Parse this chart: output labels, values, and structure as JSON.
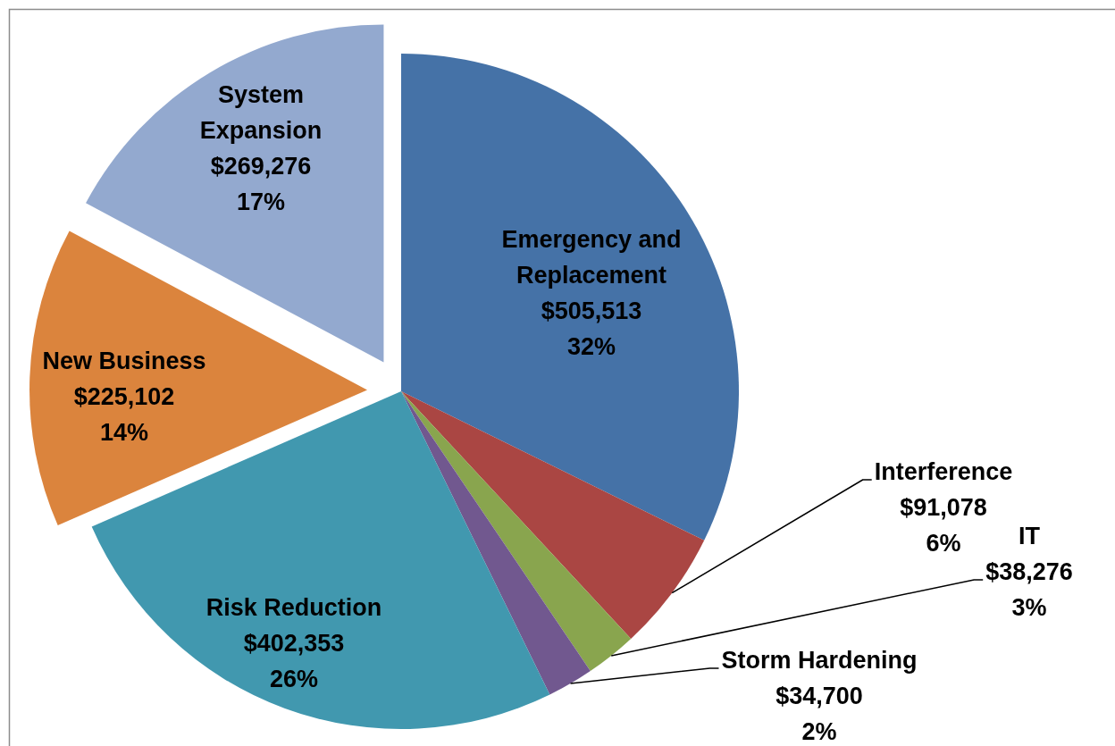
{
  "chart_data": {
    "type": "pie",
    "categories": [
      "Emergency and Replacement",
      "Interference",
      "IT",
      "Storm Hardening",
      "Risk Reduction",
      "New Business",
      "System Expansion"
    ],
    "values": [
      505513,
      91078,
      38276,
      34700,
      402353,
      225102,
      269276
    ],
    "colors": [
      "#4572a7",
      "#aa4643",
      "#89a54e",
      "#71588f",
      "#4198af",
      "#db843d",
      "#93a9cf"
    ],
    "value_labels": [
      "$505,513\n32%",
      "$91,078\n6%",
      "$38,276\n3%",
      "$34,700\n2%",
      "$402,353\n26%",
      "$225,102\n14%",
      "$269,276\n17%"
    ]
  }
}
